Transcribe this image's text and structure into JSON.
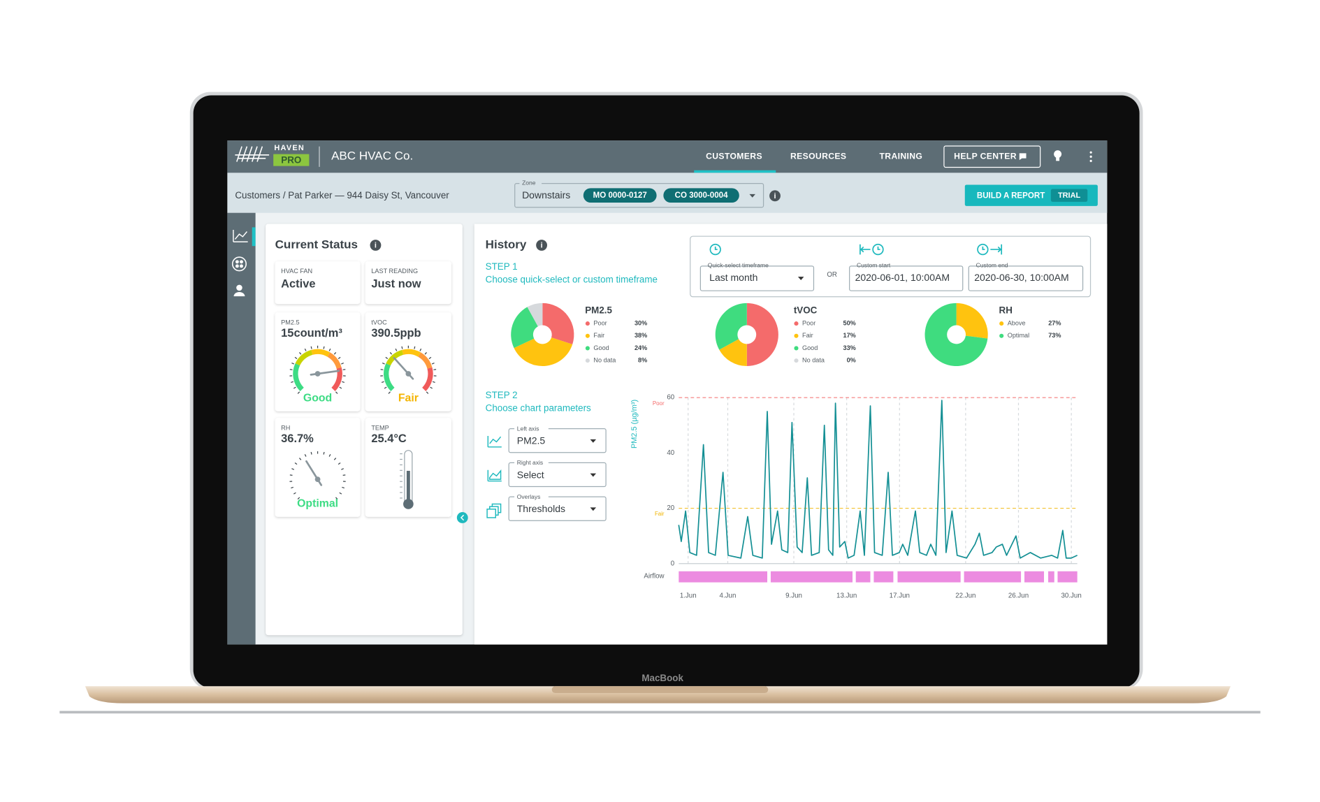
{
  "laptop_label": "MacBook",
  "nav": {
    "brand_top": "HAVEN",
    "brand_bottom": "PRO",
    "company": "ABC HVAC Co.",
    "links": [
      "CUSTOMERS",
      "RESOURCES",
      "TRAINING"
    ],
    "help": "HELP CENTER"
  },
  "subheader": {
    "breadcrumb": "Customers / Pat Parker — 944 Daisy St, Vancouver",
    "zone_label": "Zone",
    "zone": "Downstairs",
    "chips": [
      "MO 0000-0127",
      "CO 3000-0004"
    ],
    "report_button": "BUILD A REPORT",
    "report_badge": "TRIAL"
  },
  "current_status": {
    "title": "Current Status",
    "cards": [
      {
        "label": "HVAC FAN",
        "value": "Active"
      },
      {
        "label": "LAST READING",
        "value": "Just now"
      },
      {
        "label": "PM2.5",
        "value": "15count/m³",
        "status": "Good"
      },
      {
        "label": "tVOC",
        "value": "390.5ppb",
        "status": "Fair"
      },
      {
        "label": "RH",
        "value": "36.7%",
        "status": "Optimal"
      },
      {
        "label": "TEMP",
        "value": "25.4°C"
      }
    ]
  },
  "history": {
    "title": "History",
    "step1": {
      "step": "STEP 1",
      "text": "Choose quick-select or custom timeframe"
    },
    "timeframe": {
      "quick_label": "Quick-select timeframe",
      "quick_value": "Last month",
      "or": "OR",
      "start_label": "Custom start",
      "start_value": "2020-06-01, 10:00AM",
      "end_label": "Custom end",
      "end_value": "2020-06-30, 10:00AM"
    },
    "step2": {
      "step": "STEP 2",
      "text": "Choose chart parameters"
    },
    "params": [
      {
        "label": "Left axis",
        "value": "PM2.5"
      },
      {
        "label": "Right axis",
        "value": "Select"
      },
      {
        "label": "Overlays",
        "value": "Thresholds"
      }
    ]
  },
  "chart_data": [
    {
      "type": "pie",
      "title": "PM2.5",
      "categories": [
        "Poor",
        "Fair",
        "Good",
        "No data"
      ],
      "values": [
        30,
        38,
        24,
        8
      ],
      "value_labels": [
        "30%",
        "38%",
        "24%",
        "8%"
      ],
      "colors": [
        "#f46b6b",
        "#ffc30f",
        "#3fdc7f",
        "#d6d9dc"
      ]
    },
    {
      "type": "pie",
      "title": "tVOC",
      "categories": [
        "Poor",
        "Fair",
        "Good",
        "No data"
      ],
      "values": [
        50,
        17,
        33,
        0
      ],
      "value_labels": [
        "50%",
        "17%",
        "33%",
        "0%"
      ],
      "colors": [
        "#f46b6b",
        "#ffc30f",
        "#3fdc7f",
        "#d6d9dc"
      ]
    },
    {
      "type": "pie",
      "title": "RH",
      "categories": [
        "Above",
        "Optimal"
      ],
      "values": [
        27,
        73
      ],
      "value_labels": [
        "27%",
        "73%"
      ],
      "colors": [
        "#ffc30f",
        "#3fdc7f"
      ]
    },
    {
      "type": "line",
      "y_label": "PM2.5 (µg/m³)",
      "color": "#138f94",
      "x": [
        0.29,
        0.48,
        0.81,
        1.13,
        1.64,
        2.16,
        2.55,
        3.06,
        3.64,
        4.03,
        4.99,
        5.51,
        5.9,
        6.61,
        6.99,
        7.31,
        7.77,
        8.09,
        8.54,
        8.86,
        9.25,
        9.63,
        10.02,
        10.34,
        10.92,
        11.31,
        11.63,
        11.95,
        12.15,
        12.47,
        12.86,
        13.11,
        13.56,
        14.02,
        14.34,
        14.79,
        15.11,
        15.69,
        16.14,
        16.46,
        16.98,
        17.24,
        17.62,
        18.2,
        18.53,
        19.04,
        19.36,
        19.75,
        20.2,
        20.52,
        20.97,
        21.36,
        22.07,
        22.71,
        23.04,
        23.36,
        24.0,
        24.32,
        24.78,
        25.1,
        25.81,
        26.13,
        26.9,
        27.68,
        28.51,
        28.96,
        29.35,
        29.61,
        29.99,
        30.45
      ],
      "values": [
        14,
        8,
        19,
        4,
        3,
        43,
        4,
        3,
        33,
        3,
        2,
        17,
        3,
        2,
        55,
        7,
        19,
        5,
        4,
        51,
        6,
        4,
        31,
        3,
        4,
        50,
        5,
        3,
        58,
        6,
        8,
        2,
        3,
        19,
        3,
        57,
        4,
        3,
        33,
        3,
        4,
        7,
        3,
        19,
        4,
        3,
        7,
        3,
        59,
        4,
        19,
        3,
        2,
        7,
        11,
        3,
        4,
        6,
        7,
        3,
        10,
        2,
        4,
        2,
        3,
        2,
        12,
        2,
        2,
        3
      ],
      "xlim": [
        0.29,
        30.45
      ],
      "xticks": [
        {
          "value": 1,
          "label": "1.Jun"
        },
        {
          "value": 4,
          "label": "4.Jun"
        },
        {
          "value": 9,
          "label": "9.Jun"
        },
        {
          "value": 13,
          "label": "13.Jun"
        },
        {
          "value": 17,
          "label": "17.Jun"
        },
        {
          "value": 22,
          "label": "22.Jun"
        },
        {
          "value": 26,
          "label": "26.Jun"
        },
        {
          "value": 30,
          "label": "30.Jun"
        }
      ],
      "ylim": [
        0,
        60
      ],
      "yticks": [
        0,
        20,
        40,
        60
      ],
      "x_grid": true,
      "thresholds": [
        {
          "value": 60,
          "label": "Poor",
          "color": "#f46b6b"
        },
        {
          "value": 20,
          "label": "Fair",
          "color": "#f0b400"
        }
      ],
      "airflow": {
        "label": "Airflow",
        "color": "#ec8be0",
        "intervals": [
          [
            0.29,
            6.99
          ],
          [
            7.25,
            13.44
          ],
          [
            13.69,
            14.79
          ],
          [
            15.05,
            16.53
          ],
          [
            16.85,
            21.62
          ],
          [
            21.88,
            26.19
          ],
          [
            26.45,
            27.93
          ],
          [
            28.25,
            28.71
          ],
          [
            28.96,
            30.45
          ]
        ]
      }
    }
  ]
}
